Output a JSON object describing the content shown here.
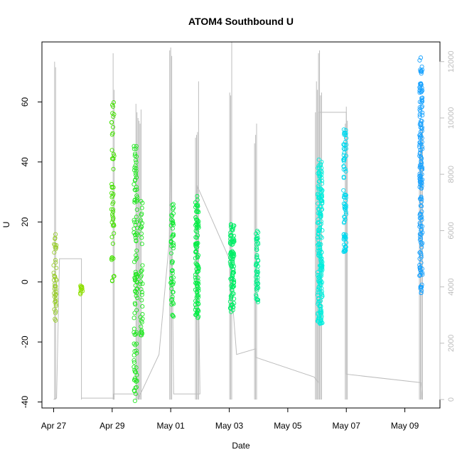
{
  "chart_data": {
    "type": "scatter",
    "title": "ATOM4 Southbound U",
    "xlabel": "Date",
    "ylabel": "U",
    "xlim": [
      -0.4,
      13.2
    ],
    "ylim": [
      -42,
      80
    ],
    "y2lim": [
      -300,
      12700
    ],
    "x_ticks": [
      {
        "value": 0,
        "label": "Apr 27"
      },
      {
        "value": 2,
        "label": "Apr 29"
      },
      {
        "value": 4,
        "label": "May 01"
      },
      {
        "value": 6,
        "label": "May 03"
      },
      {
        "value": 8,
        "label": "May 05"
      },
      {
        "value": 10,
        "label": "May 07"
      },
      {
        "value": 12,
        "label": "May 09"
      }
    ],
    "y_ticks": [
      -40,
      -20,
      0,
      20,
      40,
      60
    ],
    "y2_ticks": [
      0,
      2000,
      4000,
      6000,
      8000,
      10000,
      12000
    ],
    "point_clusters": [
      {
        "x_center": 0.05,
        "x_spread": 0.05,
        "y_min": -13,
        "y_max": 16,
        "n": 45,
        "color": "#9acd32"
      },
      {
        "x_center": 0.95,
        "x_spread": 0.04,
        "y_min": -5,
        "y_max": -1,
        "n": 14,
        "color": "#8ee000"
      },
      {
        "x_center": 2.02,
        "x_spread": 0.05,
        "y_min": 0,
        "y_max": 60,
        "n": 50,
        "color": "#44e200"
      },
      {
        "x_center": 2.8,
        "x_spread": 0.06,
        "y_min": -40,
        "y_max": 46,
        "n": 110,
        "color": "#22e622"
      },
      {
        "x_center": 3.0,
        "x_spread": 0.04,
        "y_min": -18,
        "y_max": 28,
        "n": 40,
        "color": "#22e622"
      },
      {
        "x_center": 4.05,
        "x_spread": 0.05,
        "y_min": -12,
        "y_max": 26,
        "n": 55,
        "color": "#11ea33"
      },
      {
        "x_center": 4.9,
        "x_spread": 0.06,
        "y_min": -12,
        "y_max": 30,
        "n": 100,
        "color": "#00ee44"
      },
      {
        "x_center": 6.1,
        "x_spread": 0.07,
        "y_min": -10,
        "y_max": 20,
        "n": 100,
        "color": "#00ee66"
      },
      {
        "x_center": 6.95,
        "x_spread": 0.04,
        "y_min": -8,
        "y_max": 18,
        "n": 55,
        "color": "#00ee88"
      },
      {
        "x_center": 9.1,
        "x_spread": 0.08,
        "y_min": -14,
        "y_max": 41,
        "n": 190,
        "color": "#00eedd"
      },
      {
        "x_center": 9.95,
        "x_spread": 0.05,
        "y_min": 10,
        "y_max": 51,
        "n": 80,
        "color": "#00d8ee"
      },
      {
        "x_center": 12.55,
        "x_spread": 0.05,
        "y_min": -5,
        "y_max": 75,
        "n": 170,
        "color": "#1aa3ff"
      }
    ],
    "secondary_series": {
      "name": "spikes",
      "color": "#bdbdbd",
      "spike_groups": [
        {
          "x": 0.05,
          "tops": [
            12000,
            11800
          ],
          "n": 2
        },
        {
          "x": 2.05,
          "tops": [
            12300,
            11000
          ],
          "n": 2
        },
        {
          "x": 2.9,
          "tops": [
            10500,
            10200,
            10000,
            9900,
            9800,
            10300
          ],
          "n": 6
        },
        {
          "x": 4.0,
          "tops": [
            12400,
            12500,
            12200
          ],
          "n": 3
        },
        {
          "x": 4.9,
          "tops": [
            9300,
            9400,
            9500,
            11300
          ],
          "n": 4
        },
        {
          "x": 6.05,
          "tops": [
            10900,
            10800,
            12700
          ],
          "n": 3
        },
        {
          "x": 6.9,
          "tops": [
            9100,
            9400,
            9800
          ],
          "n": 3
        },
        {
          "x": 9.05,
          "tops": [
            10200,
            11300,
            11000,
            12300,
            12400,
            10800,
            10900
          ],
          "n": 7
        },
        {
          "x": 10.0,
          "tops": [
            9800,
            10400,
            9900
          ],
          "n": 3
        },
        {
          "x": 12.55,
          "tops": [
            8700,
            9200,
            9600,
            9900
          ],
          "n": 4
        }
      ],
      "spike_bottom": 0,
      "path": [
        [
          0.0,
          0
        ],
        [
          0.1,
          50
        ],
        [
          0.2,
          5000
        ],
        [
          0.95,
          5000
        ],
        [
          0.95,
          0
        ],
        [
          0.95,
          50
        ],
        [
          2.05,
          50
        ],
        [
          2.05,
          0
        ],
        [
          2.05,
          200
        ],
        [
          2.9,
          200
        ],
        [
          2.9,
          0
        ],
        [
          2.9,
          50
        ],
        [
          3.6,
          1600
        ],
        [
          3.95,
          5600
        ],
        [
          4.0,
          10300
        ],
        [
          4.1,
          200
        ],
        [
          5.0,
          200
        ],
        [
          4.9,
          7600
        ],
        [
          6.0,
          5000
        ],
        [
          6.25,
          1600
        ],
        [
          6.9,
          1800
        ],
        [
          6.9,
          1500
        ],
        [
          8.9,
          800
        ],
        [
          9.05,
          600
        ],
        [
          9.05,
          10200
        ],
        [
          10.0,
          10200
        ],
        [
          10.0,
          900
        ],
        [
          12.55,
          600
        ],
        [
          12.6,
          0
        ]
      ]
    }
  }
}
